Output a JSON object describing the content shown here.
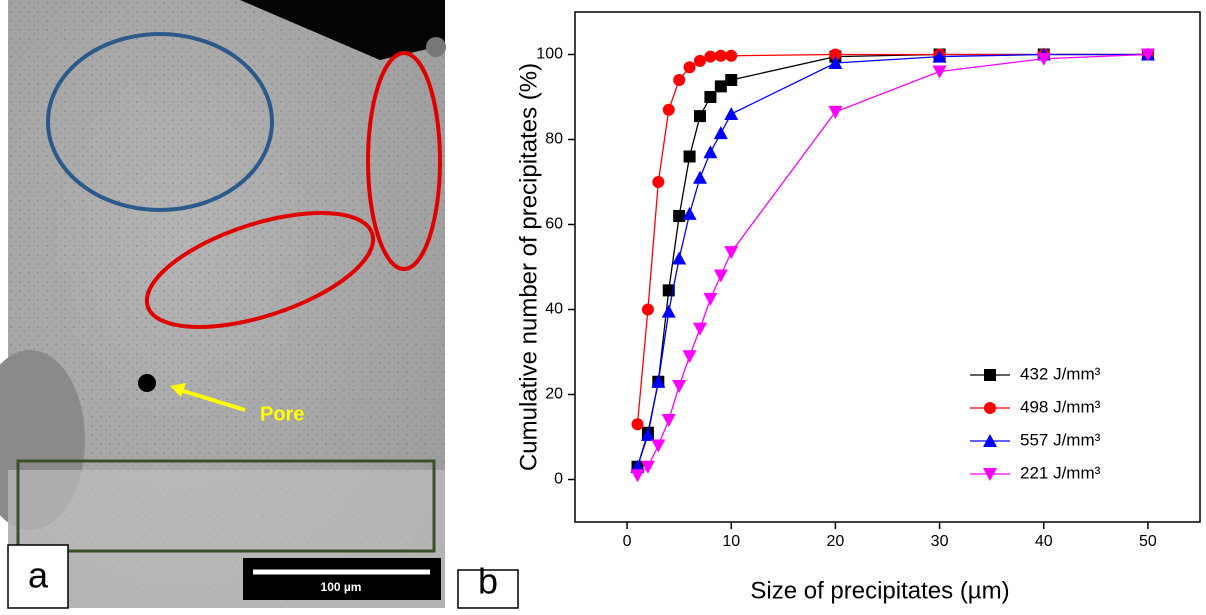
{
  "micrograph": {
    "panel_label": "a",
    "annotation": "Pore",
    "scale_bar": "100 µm"
  },
  "chart_data": {
    "type": "line",
    "panel_label": "b",
    "x_label": "Size of precipitates (µm)",
    "y_label": "Cumulative number of precipitates (%)",
    "x": [
      1,
      2,
      3,
      4,
      5,
      6,
      7,
      8,
      9,
      10,
      20,
      30,
      40,
      50
    ],
    "series": [
      {
        "name": "432 J/mm³",
        "color": "#000000",
        "marker": "square",
        "values": [
          3,
          11,
          23,
          44.5,
          62,
          76,
          85.5,
          90,
          92.5,
          94,
          99.5,
          100,
          100,
          100
        ]
      },
      {
        "name": "498 J/mm³",
        "color": "#ff0000",
        "marker": "circle",
        "values": [
          13,
          40,
          70,
          87,
          94,
          97,
          98.5,
          99.5,
          99.7,
          99.7,
          100,
          100,
          100,
          100
        ]
      },
      {
        "name": "557 J/mm³",
        "color": "#0000ff",
        "marker": "triangle-up",
        "values": [
          3,
          10.5,
          23,
          39.5,
          52,
          62.5,
          71,
          77,
          81.5,
          86,
          98,
          99.5,
          100,
          100
        ]
      },
      {
        "name": "221 J/mm³",
        "color": "#ff00ff",
        "marker": "triangle-down",
        "values": [
          1,
          3,
          8,
          14,
          22,
          29,
          35.5,
          42.5,
          48,
          53.5,
          86.5,
          96,
          99,
          100
        ]
      }
    ],
    "xlim": [
      -5,
      55
    ],
    "ylim": [
      -10,
      110
    ],
    "xticks": [
      0,
      10,
      20,
      30,
      40,
      50
    ],
    "yticks": [
      0,
      20,
      40,
      60,
      80,
      100
    ],
    "legend": "lower right"
  }
}
